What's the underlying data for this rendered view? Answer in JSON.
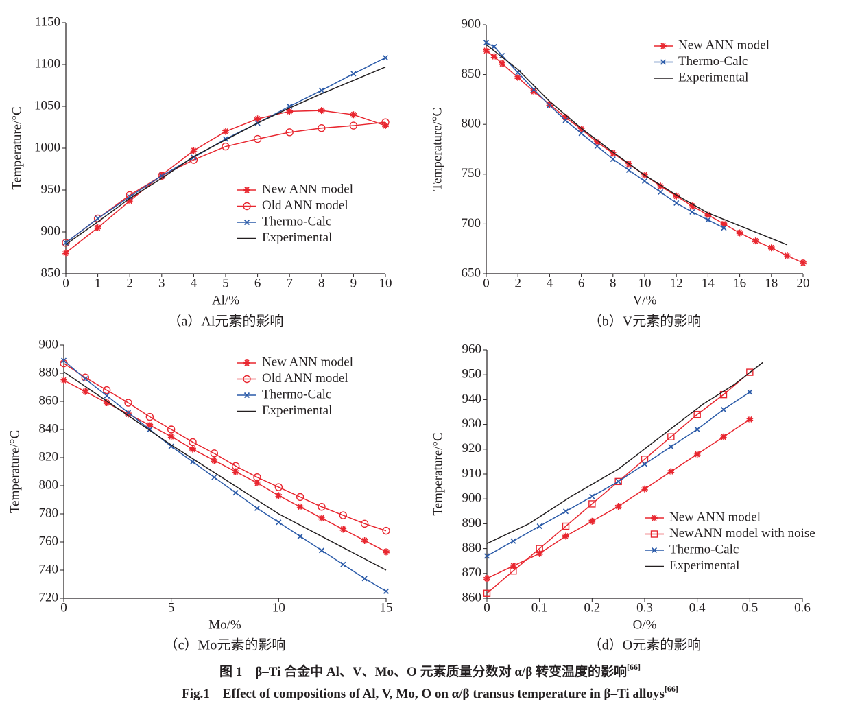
{
  "chart_data": [
    {
      "type": "line",
      "caption": "（a）Al元素的影响",
      "xlabel": "Al/%",
      "ylabel": "Temperature/°C",
      "xlim": [
        0,
        10
      ],
      "xticks": [
        0,
        1,
        2,
        3,
        4,
        5,
        6,
        7,
        8,
        9,
        10
      ],
      "ylim": [
        850,
        1150
      ],
      "yticks": [
        850,
        900,
        950,
        1000,
        1050,
        1100,
        1150
      ],
      "series": [
        {
          "name": "New ANN model",
          "color": "#e8262f",
          "marker": "star",
          "x": [
            0,
            1,
            2,
            3,
            4,
            5,
            6,
            7,
            8,
            9,
            10
          ],
          "values": [
            875,
            905,
            937,
            968,
            997,
            1020,
            1035,
            1044,
            1045,
            1040,
            1027
          ]
        },
        {
          "name": "Old ANN model",
          "color": "#e8262f",
          "marker": "circle",
          "x": [
            0,
            1,
            2,
            3,
            4,
            5,
            6,
            7,
            8,
            9,
            10
          ],
          "values": [
            887,
            916,
            944,
            967,
            986,
            1002,
            1011,
            1019,
            1024,
            1027,
            1031
          ]
        },
        {
          "name": "Thermo-Calc",
          "color": "#2a5aa8",
          "marker": "x",
          "x": [
            0,
            1,
            2,
            3,
            4,
            5,
            6,
            7,
            8,
            9,
            10
          ],
          "values": [
            887,
            916,
            942,
            967,
            989,
            1011,
            1030,
            1050,
            1069,
            1089,
            1108
          ]
        },
        {
          "name": "Experimental",
          "color": "#231f20",
          "marker": "none",
          "x": [
            0,
            1,
            2,
            3,
            4,
            5,
            6,
            7,
            8,
            9,
            10
          ],
          "values": [
            885,
            912,
            940,
            964,
            990,
            1010,
            1030,
            1048,
            1065,
            1081,
            1097
          ]
        }
      ]
    },
    {
      "type": "line",
      "caption": "（b）V元素的影响",
      "xlabel": "V/%",
      "ylabel": "Temperature/°C",
      "xlim": [
        0,
        20
      ],
      "xticks": [
        0,
        2,
        4,
        6,
        8,
        10,
        12,
        14,
        16,
        18,
        20
      ],
      "ylim": [
        650,
        900
      ],
      "yticks": [
        650,
        700,
        750,
        800,
        850,
        900
      ],
      "series": [
        {
          "name": "New ANN model",
          "color": "#e8262f",
          "marker": "star",
          "x": [
            0,
            0.5,
            1,
            2,
            3,
            4,
            5,
            6,
            7,
            8,
            9,
            10,
            11,
            12,
            13,
            14,
            15,
            16,
            17,
            18,
            19,
            20
          ],
          "values": [
            874,
            868,
            861,
            847,
            833,
            820,
            807,
            795,
            782,
            771,
            760,
            749,
            738,
            728,
            718,
            709,
            700,
            691,
            683,
            676,
            668,
            661
          ]
        },
        {
          "name": "Thermo-Calc",
          "color": "#2a5aa8",
          "marker": "x",
          "x": [
            0,
            0.5,
            1,
            2,
            3,
            4,
            5,
            6,
            7,
            8,
            9,
            10,
            11,
            12,
            13,
            14,
            15
          ],
          "values": [
            882,
            878,
            869,
            852,
            835,
            819,
            804,
            791,
            778,
            765,
            754,
            743,
            732,
            721,
            712,
            704,
            696
          ]
        },
        {
          "name": "Experimental",
          "color": "#231f20",
          "marker": "none",
          "x": [
            0,
            2,
            4,
            6,
            8,
            10,
            12,
            14,
            16.5,
            19
          ],
          "values": [
            880,
            855,
            823,
            796,
            772,
            749,
            729,
            711,
            695,
            679
          ]
        }
      ]
    },
    {
      "type": "line",
      "caption": "（c）Mo元素的影响",
      "xlabel": "Mo/%",
      "ylabel": "Temperature/°C",
      "xlim": [
        0,
        15
      ],
      "xticks": [
        0,
        5,
        10,
        15
      ],
      "ylim": [
        720,
        900
      ],
      "yticks": [
        720,
        740,
        760,
        780,
        800,
        820,
        840,
        860,
        880,
        900
      ],
      "series": [
        {
          "name": "New ANN model",
          "color": "#e8262f",
          "marker": "star",
          "x": [
            0,
            1,
            2,
            3,
            4,
            5,
            6,
            7,
            8,
            9,
            10,
            11,
            12,
            13,
            14,
            15
          ],
          "values": [
            875,
            867,
            859,
            851,
            843,
            835,
            826,
            818,
            810,
            802,
            793,
            785,
            777,
            769,
            761,
            753
          ]
        },
        {
          "name": "Old ANN model",
          "color": "#e8262f",
          "marker": "circle",
          "x": [
            0,
            1,
            2,
            3,
            4,
            5,
            6,
            7,
            8,
            9,
            10,
            11,
            12,
            13,
            14,
            15
          ],
          "values": [
            887,
            877,
            868,
            859,
            849,
            840,
            831,
            823,
            814,
            806,
            799,
            792,
            785,
            779,
            773,
            768
          ]
        },
        {
          "name": "Thermo-Calc",
          "color": "#2a5aa8",
          "marker": "x",
          "x": [
            0,
            1,
            2,
            3,
            4,
            5,
            6,
            7,
            8,
            9,
            10,
            11,
            12,
            13,
            14,
            15
          ],
          "values": [
            889,
            876,
            864,
            852,
            840,
            828,
            817,
            806,
            795,
            784,
            774,
            764,
            754,
            744,
            734,
            725
          ]
        },
        {
          "name": "Experimental",
          "color": "#231f20",
          "marker": "none",
          "x": [
            0,
            5,
            10,
            15
          ],
          "values": [
            881,
            829,
            780,
            740
          ]
        }
      ]
    },
    {
      "type": "line",
      "caption": "（d）O元素的影响",
      "xlabel": "O/%",
      "ylabel": "Temperature/°C",
      "xlim": [
        0,
        0.6
      ],
      "xticks": [
        0,
        0.1,
        0.2,
        0.3,
        0.4,
        0.5,
        0.6
      ],
      "ylim": [
        860,
        960
      ],
      "yticks": [
        860,
        870,
        880,
        890,
        900,
        910,
        920,
        930,
        940,
        950,
        960
      ],
      "series": [
        {
          "name": "New ANN model",
          "color": "#e8262f",
          "marker": "star",
          "x": [
            0,
            0.05,
            0.1,
            0.15,
            0.2,
            0.25,
            0.3,
            0.35,
            0.4,
            0.45,
            0.5
          ],
          "values": [
            868,
            873,
            878,
            885,
            891,
            897,
            904,
            911,
            918,
            925,
            932
          ]
        },
        {
          "name": "NewANN model with noise",
          "color": "#e8262f",
          "marker": "square",
          "x": [
            0,
            0.05,
            0.1,
            0.15,
            0.2,
            0.25,
            0.3,
            0.35,
            0.4,
            0.45,
            0.5
          ],
          "values": [
            862,
            871,
            880,
            889,
            898,
            907,
            916,
            925,
            934,
            942,
            951
          ]
        },
        {
          "name": "Thermo-Calc",
          "color": "#2a5aa8",
          "marker": "x",
          "x": [
            0,
            0.05,
            0.1,
            0.15,
            0.2,
            0.25,
            0.3,
            0.35,
            0.4,
            0.45,
            0.5
          ],
          "values": [
            877,
            883,
            889,
            895,
            901,
            907,
            914,
            921,
            928,
            936,
            943
          ]
        },
        {
          "name": "Experimental",
          "color": "#231f20",
          "marker": "none",
          "x": [
            0,
            0.08,
            0.16,
            0.25,
            0.33,
            0.41,
            0.47,
            0.525
          ],
          "values": [
            882,
            890,
            901,
            912,
            925,
            938,
            946,
            955
          ]
        }
      ]
    }
  ],
  "figure": {
    "caption_cn": "图 1　β–Ti 合金中 Al、V、Mo、O 元素质量分数对 α/β 转变温度的影响",
    "ref_cn": "[66]",
    "caption_en": "Fig.1　Effect of compositions of Al, V, Mo, O on α/β transus temperature in β–Ti alloys",
    "ref_en": "[66]"
  }
}
